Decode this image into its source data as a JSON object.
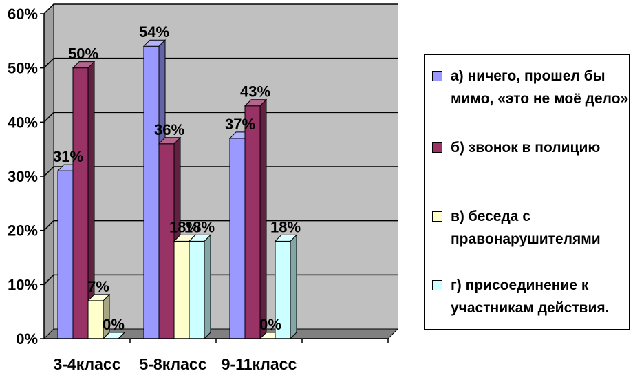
{
  "chart_data": {
    "type": "bar",
    "categories": [
      "3-4класс",
      "5-8класс",
      "9-11класс"
    ],
    "series": [
      {
        "name": "а) ничего, прошел бы мимо, «это не моё дело»",
        "values": [
          31,
          54,
          37
        ],
        "labels": [
          "31%",
          "54%",
          "37%"
        ],
        "color": "#9999ff"
      },
      {
        "name": "б) звонок в полицию",
        "values": [
          50,
          36,
          43
        ],
        "labels": [
          "50%",
          "36%",
          "43%"
        ],
        "color": "#993366"
      },
      {
        "name": "в) беседа с правонарушителями",
        "values": [
          7,
          18,
          0
        ],
        "labels": [
          "7%",
          "18%",
          "0%"
        ],
        "color": "#ffffcc"
      },
      {
        "name": "г) присоединение к участникам действия.",
        "values": [
          0,
          18,
          18
        ],
        "labels": [
          "0%",
          "18%",
          "18%"
        ],
        "color": "#ccffff"
      }
    ],
    "ylim": [
      0,
      60
    ],
    "yticks": [
      "0%",
      "10%",
      "20%",
      "30%",
      "40%",
      "50%",
      "60%"
    ],
    "grid": true,
    "legend_position": "right",
    "background": "#c0c0c0"
  },
  "legend": {
    "items": [
      {
        "text": "а)  ничего, прошел бы\nмимо,  «это не моё дело»",
        "color": "#9999ff"
      },
      {
        "text": "б)  звонок в полицию",
        "color": "#993366"
      },
      {
        "text": "в)  беседа с\nправонарушителями",
        "color": "#ffffcc"
      },
      {
        "text": "г)  присоединение к\nучастникам действия.",
        "color": "#ccffff"
      }
    ]
  }
}
